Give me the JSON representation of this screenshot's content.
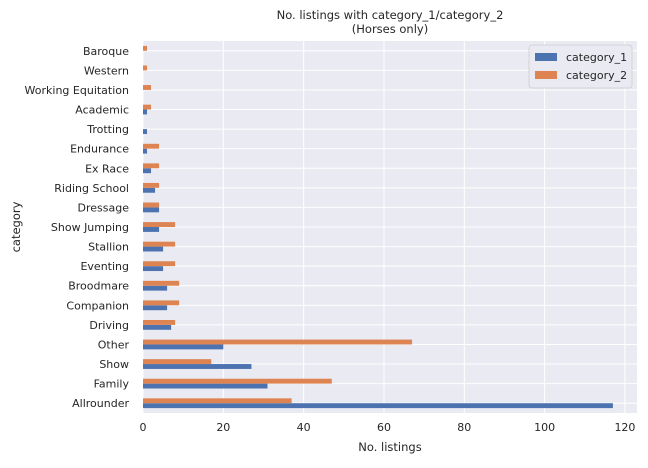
{
  "chart_data": {
    "type": "bar",
    "orientation": "horizontal",
    "title": "No. listings with category_1/category_2",
    "subtitle": "(Horses only)",
    "xlabel": "No. listings",
    "ylabel": "category",
    "xlim": [
      0,
      123
    ],
    "xticks": [
      0,
      20,
      40,
      60,
      80,
      100,
      120
    ],
    "grid": true,
    "legend_position": "top-right",
    "categories": [
      "Allrounder",
      "Family",
      "Show",
      "Other",
      "Driving",
      "Companion",
      "Broodmare",
      "Eventing",
      "Stallion",
      "Show Jumping",
      "Dressage",
      "Riding School",
      "Ex Race",
      "Endurance",
      "Trotting",
      "Academic",
      "Working Equitation",
      "Western",
      "Baroque"
    ],
    "series": [
      {
        "name": "category_1",
        "color": "#4c72b0",
        "values": [
          117,
          31,
          27,
          20,
          7,
          6,
          6,
          5,
          5,
          4,
          4,
          3,
          2,
          1,
          1,
          1,
          0,
          0,
          0
        ]
      },
      {
        "name": "category_2",
        "color": "#dd8452",
        "values": [
          37,
          47,
          17,
          67,
          8,
          9,
          9,
          8,
          8,
          8,
          4,
          4,
          4,
          4,
          0,
          2,
          2,
          1,
          1
        ]
      }
    ]
  },
  "colors": {
    "plot_background": "#eaeaf2",
    "grid": "#ffffff",
    "text": "#262626"
  }
}
